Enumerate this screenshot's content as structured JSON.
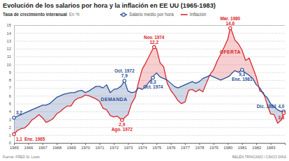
{
  "chart_data": {
    "type": "line",
    "title": "Evolución de los salarios por hora y la inflación en EE UU (1965-1983)",
    "subtitle": "Tasa de crecimiento interanual",
    "y_label": "En %",
    "source": "Fuente: FRED St. Louis",
    "credit": "BELÉN TRINCADO / CINCO DÍAS",
    "legend": "top",
    "grid": true,
    "xlim": [
      1965,
      1984
    ],
    "xticks": [
      1965,
      1966,
      1967,
      1968,
      1969,
      1970,
      1971,
      1972,
      1973,
      1974,
      1975,
      1976,
      1977,
      1978,
      1979,
      1980,
      1981,
      1982,
      1983
    ],
    "ylim": [
      0,
      15
    ],
    "yticks": [
      0,
      1,
      2,
      3,
      4,
      5,
      6,
      7,
      8,
      9,
      10,
      11,
      12,
      13,
      14,
      15
    ],
    "x": [
      1965.0,
      1965.25,
      1965.5,
      1965.75,
      1966.0,
      1966.25,
      1966.5,
      1966.75,
      1967.0,
      1967.25,
      1967.5,
      1967.75,
      1968.0,
      1968.25,
      1968.5,
      1968.75,
      1969.0,
      1969.25,
      1969.5,
      1969.75,
      1970.0,
      1970.25,
      1970.5,
      1970.75,
      1971.0,
      1971.25,
      1971.5,
      1971.75,
      1972.0,
      1972.25,
      1972.5,
      1972.58,
      1972.75,
      1973.0,
      1973.25,
      1973.5,
      1973.75,
      1974.0,
      1974.25,
      1974.5,
      1974.75,
      1974.83,
      1975.0,
      1975.25,
      1975.5,
      1975.75,
      1976.0,
      1976.25,
      1976.5,
      1976.75,
      1977.0,
      1977.25,
      1977.5,
      1977.75,
      1978.0,
      1978.25,
      1978.5,
      1978.75,
      1979.0,
      1979.25,
      1979.5,
      1979.75,
      1980.0,
      1980.17,
      1980.25,
      1980.5,
      1980.75,
      1981.0,
      1981.25,
      1981.5,
      1981.75,
      1982.0,
      1982.25,
      1982.5,
      1982.75,
      1983.0,
      1983.25,
      1983.5,
      1983.75,
      1983.92
    ],
    "series": [
      {
        "name": "Salario medio por hora",
        "color": "#2b4f96",
        "marker": "circle",
        "values": [
          3.2,
          3.4,
          3.6,
          3.8,
          4.0,
          4.2,
          4.4,
          4.6,
          4.8,
          4.8,
          5.0,
          5.4,
          5.8,
          6.0,
          6.2,
          6.3,
          6.4,
          6.4,
          6.6,
          6.7,
          6.4,
          6.6,
          6.9,
          7.2,
          7.2,
          7.0,
          7.4,
          6.4,
          6.8,
          6.9,
          7.2,
          7.4,
          7.9,
          6.6,
          6.4,
          6.5,
          7.0,
          6.8,
          7.2,
          7.8,
          8.3,
          8.6,
          8.9,
          8.4,
          8.2,
          8.0,
          7.6,
          7.2,
          7.0,
          7.2,
          7.4,
          7.6,
          7.8,
          7.6,
          7.8,
          8.2,
          8.4,
          8.6,
          8.4,
          8.2,
          8.0,
          8.2,
          8.4,
          8.6,
          8.8,
          9.2,
          9.0,
          9.3,
          8.9,
          8.6,
          8.2,
          7.4,
          7.0,
          6.2,
          5.8,
          5.0,
          4.6,
          4.2,
          4.0,
          4.0
        ]
      },
      {
        "name": "Inflación",
        "color": "#d9262b",
        "values": [
          1.1,
          1.6,
          1.8,
          1.9,
          2.3,
          2.9,
          3.2,
          3.6,
          3.2,
          2.6,
          2.8,
          3.1,
          3.7,
          4.0,
          4.4,
          4.7,
          4.7,
          5.4,
          5.7,
          5.8,
          6.1,
          6.0,
          5.8,
          5.6,
          5.3,
          4.4,
          4.2,
          3.5,
          3.3,
          3.4,
          3.0,
          2.9,
          3.2,
          3.6,
          5.0,
          5.8,
          7.8,
          9.4,
          10.2,
          11.1,
          12.0,
          12.2,
          12.0,
          10.2,
          9.7,
          7.6,
          6.7,
          6.1,
          5.4,
          5.0,
          5.2,
          6.7,
          6.8,
          6.5,
          6.8,
          6.5,
          7.6,
          8.7,
          9.3,
          10.4,
          11.3,
          12.2,
          13.2,
          14.6,
          14.4,
          13.1,
          12.6,
          11.8,
          10.5,
          10.8,
          9.6,
          8.4,
          6.6,
          6.4,
          5.0,
          3.7,
          3.6,
          2.5,
          2.9,
          3.8
        ]
      }
    ],
    "annotations": [
      {
        "series": "Salario medio por hora",
        "x": 1965.0,
        "value": 3.2,
        "label": "3,2"
      },
      {
        "series": "Inflación",
        "x": 1965.0,
        "value": 1.1,
        "label": "1,1",
        "date": "Ene. 1965"
      },
      {
        "series": "Salario medio por hora",
        "x": 1972.75,
        "value": 7.9,
        "label": "7,9",
        "date": "Oct. 1972"
      },
      {
        "series": "Inflación",
        "x": 1972.58,
        "value": 2.9,
        "label": "2,9",
        "date": "Ago. 1972"
      },
      {
        "series": "Inflación",
        "x": 1974.83,
        "value": 12.2,
        "label": "12,2",
        "date": "Nov. 1974"
      },
      {
        "series": "Salario medio por hora",
        "x": 1974.75,
        "value": 8.3,
        "label": "8,3",
        "date": "Oct. 1974"
      },
      {
        "series": "Inflación",
        "x": 1980.17,
        "value": 14.6,
        "label": "14,6",
        "date": "Mar. 1980"
      },
      {
        "series": "Salario medio por hora",
        "x": 1981.0,
        "value": 9.3,
        "label": "9,3",
        "date": "Ene. 1981"
      },
      {
        "series": "Salario medio por hora",
        "x": 1983.92,
        "value": 4.0,
        "label": "4,0",
        "date": "Dic. 1983"
      },
      {
        "series": "Inflación",
        "x": 1983.92,
        "value": 3.8,
        "label": "3,8"
      }
    ],
    "region_labels": [
      {
        "text": "DEMANDA",
        "series": "Salario medio por hora"
      },
      {
        "text": "OFERTA",
        "series": "Inflación"
      }
    ]
  }
}
